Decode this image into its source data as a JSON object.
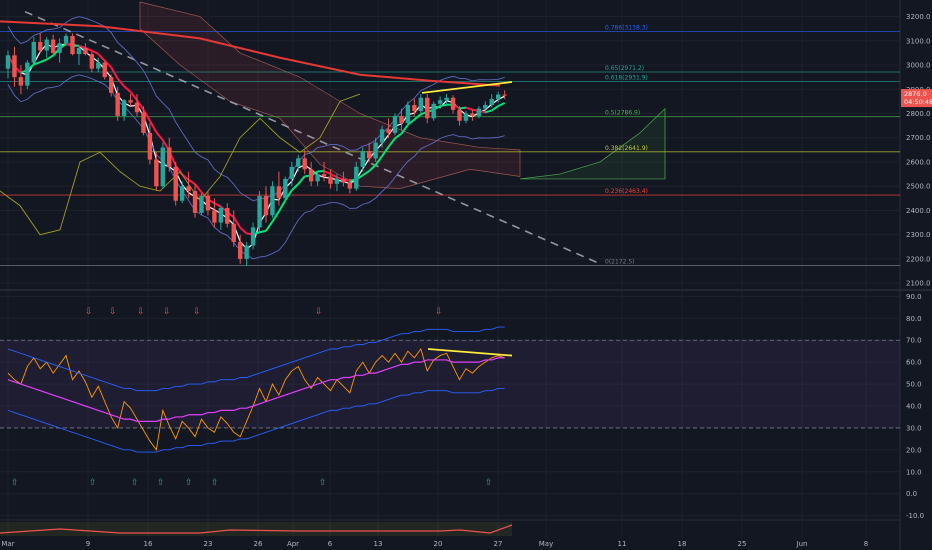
{
  "chart_data": {
    "type": "candlestick",
    "panels": [
      {
        "name": "price",
        "ylim": [
          2080,
          3260
        ],
        "y_ticks": [
          "3200.0",
          "3100.0",
          "3000.0",
          "2900.0",
          "2800.0",
          "2700.0",
          "2600.0",
          "2500.0",
          "2400.0",
          "2300.0",
          "2200.0",
          "2100.0"
        ],
        "candles": [
          [
            2985,
            3060,
            2945,
            3040
          ],
          [
            3040,
            3075,
            2910,
            2950
          ],
          [
            2950,
            3000,
            2880,
            2915
          ],
          [
            2915,
            3020,
            2900,
            3010
          ],
          [
            3010,
            3115,
            3000,
            3095
          ],
          [
            3095,
            3130,
            3050,
            3060
          ],
          [
            3060,
            3115,
            3030,
            3105
          ],
          [
            3105,
            3125,
            3040,
            3050
          ],
          [
            3050,
            3110,
            3010,
            3090
          ],
          [
            3090,
            3130,
            3080,
            3120
          ],
          [
            3120,
            3130,
            3040,
            3045
          ],
          [
            3045,
            3080,
            3000,
            3070
          ],
          [
            3070,
            3090,
            3040,
            3045
          ],
          [
            3045,
            3055,
            2970,
            2985
          ],
          [
            2985,
            3030,
            2970,
            3010
          ],
          [
            3010,
            3020,
            2940,
            2950
          ],
          [
            2950,
            2960,
            2870,
            2885
          ],
          [
            2885,
            2910,
            2770,
            2790
          ],
          [
            2790,
            2860,
            2770,
            2855
          ],
          [
            2855,
            2880,
            2830,
            2845
          ],
          [
            2845,
            2880,
            2790,
            2805
          ],
          [
            2805,
            2830,
            2710,
            2720
          ],
          [
            2720,
            2760,
            2590,
            2610
          ],
          [
            2610,
            2640,
            2480,
            2500
          ],
          [
            2500,
            2680,
            2490,
            2660
          ],
          [
            2660,
            2700,
            2560,
            2580
          ],
          [
            2580,
            2600,
            2420,
            2440
          ],
          [
            2440,
            2520,
            2430,
            2500
          ],
          [
            2500,
            2560,
            2450,
            2480
          ],
          [
            2480,
            2510,
            2370,
            2390
          ],
          [
            2390,
            2470,
            2380,
            2460
          ],
          [
            2460,
            2480,
            2380,
            2400
          ],
          [
            2400,
            2450,
            2330,
            2350
          ],
          [
            2350,
            2420,
            2320,
            2410
          ],
          [
            2410,
            2430,
            2330,
            2345
          ],
          [
            2345,
            2400,
            2250,
            2270
          ],
          [
            2270,
            2300,
            2180,
            2200
          ],
          [
            2200,
            2270,
            2170,
            2255
          ],
          [
            2255,
            2350,
            2240,
            2330
          ],
          [
            2330,
            2480,
            2310,
            2460
          ],
          [
            2460,
            2500,
            2350,
            2380
          ],
          [
            2380,
            2520,
            2370,
            2500
          ],
          [
            2500,
            2560,
            2420,
            2450
          ],
          [
            2450,
            2540,
            2440,
            2530
          ],
          [
            2530,
            2600,
            2500,
            2580
          ],
          [
            2580,
            2630,
            2560,
            2615
          ],
          [
            2615,
            2650,
            2550,
            2570
          ],
          [
            2570,
            2600,
            2500,
            2520
          ],
          [
            2520,
            2560,
            2500,
            2550
          ],
          [
            2550,
            2600,
            2520,
            2540
          ],
          [
            2540,
            2570,
            2490,
            2510
          ],
          [
            2510,
            2550,
            2480,
            2530
          ],
          [
            2530,
            2560,
            2500,
            2515
          ],
          [
            2515,
            2530,
            2470,
            2490
          ],
          [
            2490,
            2600,
            2480,
            2580
          ],
          [
            2580,
            2660,
            2560,
            2645
          ],
          [
            2645,
            2680,
            2600,
            2615
          ],
          [
            2615,
            2700,
            2600,
            2680
          ],
          [
            2680,
            2750,
            2660,
            2735
          ],
          [
            2735,
            2780,
            2700,
            2720
          ],
          [
            2720,
            2800,
            2710,
            2790
          ],
          [
            2790,
            2820,
            2730,
            2760
          ],
          [
            2760,
            2850,
            2750,
            2835
          ],
          [
            2835,
            2860,
            2790,
            2810
          ],
          [
            2810,
            2880,
            2800,
            2865
          ],
          [
            2865,
            2880,
            2760,
            2780
          ],
          [
            2780,
            2850,
            2770,
            2840
          ],
          [
            2840,
            2870,
            2820,
            2855
          ],
          [
            2855,
            2880,
            2840,
            2865
          ],
          [
            2865,
            2875,
            2800,
            2815
          ],
          [
            2815,
            2830,
            2750,
            2770
          ],
          [
            2770,
            2810,
            2760,
            2800
          ],
          [
            2800,
            2815,
            2770,
            2790
          ],
          [
            2790,
            2830,
            2780,
            2820
          ],
          [
            2820,
            2850,
            2800,
            2835
          ],
          [
            2835,
            2880,
            2825,
            2860
          ],
          [
            2860,
            2890,
            2845,
            2878
          ],
          [
            2878,
            2895,
            2860,
            2876
          ]
        ]
      },
      {
        "name": "rsi",
        "ylim": [
          -12,
          92
        ],
        "y_ticks": [
          "90.0",
          "80.0",
          "70.0",
          "60.0",
          "50.0",
          "40.0",
          "30.0",
          "20.0",
          "10.0",
          "0.0",
          "-10.0"
        ],
        "rsi": [
          55,
          52,
          50,
          58,
          62,
          57,
          60,
          55,
          59,
          63,
          52,
          56,
          51,
          44,
          49,
          42,
          35,
          30,
          42,
          39,
          34,
          29,
          24,
          20,
          38,
          31,
          25,
          33,
          30,
          26,
          34,
          30,
          28,
          35,
          32,
          28,
          26,
          33,
          40,
          48,
          42,
          50,
          45,
          52,
          56,
          58,
          52,
          48,
          53,
          50,
          47,
          52,
          49,
          46,
          56,
          60,
          55,
          60,
          63,
          60,
          64,
          60,
          65,
          62,
          66,
          56,
          61,
          63,
          64,
          58,
          52,
          57,
          55,
          58,
          60,
          62,
          63,
          62
        ],
        "ma": [
          52,
          51,
          50,
          49,
          48,
          47,
          46,
          45,
          44,
          43,
          42,
          41,
          40,
          39,
          38,
          37,
          36,
          35,
          34,
          34,
          33,
          33,
          33,
          33,
          34,
          34,
          35,
          35,
          36,
          36,
          36,
          37,
          37,
          38,
          38,
          38,
          39,
          39,
          40,
          41,
          42,
          43,
          44,
          45,
          46,
          47,
          48,
          49,
          50,
          51,
          52,
          52,
          53,
          53,
          54,
          54,
          55,
          55,
          56,
          57,
          58,
          59,
          59,
          60,
          60,
          61,
          61,
          61,
          61,
          60,
          60,
          60,
          60,
          60,
          61,
          61,
          62,
          62
        ]
      }
    ],
    "x_labels": [
      "Mar",
      "9",
      "16",
      "23",
      "26",
      "Apr",
      "6",
      "13",
      "20",
      "27",
      "May",
      "11",
      "18",
      "25",
      "Jun",
      "8"
    ],
    "fib_levels": [
      {
        "label": "0.786(3138.3)",
        "value": 3138.3,
        "color": "#2962ff"
      },
      {
        "label": "0.65(2971.2)",
        "value": 2971.2,
        "color": "#26a69a"
      },
      {
        "label": "0.618(2931.9)",
        "value": 2931.9,
        "color": "#26a69a"
      },
      {
        "label": "0.5(2786.9)",
        "value": 2786.9,
        "color": "#4caf50"
      },
      {
        "label": "0.382(2641.9)",
        "value": 2641.9,
        "color": "#c0ca33"
      },
      {
        "label": "0.236(2463.4)",
        "value": 2463.4,
        "color": "#f44336"
      },
      {
        "label": "0(2172.5)",
        "value": 2172.5,
        "color": "#787b86"
      }
    ],
    "last_price": "2876.0",
    "countdown": "04:50:48",
    "colors": {
      "up": "#26a69a",
      "down": "#ef5350",
      "background": "#131722",
      "rsi": "#ff9800",
      "rsi_ma": "#e040fb",
      "bands": "#2962ff",
      "divergence": "#ffeb3b"
    }
  }
}
